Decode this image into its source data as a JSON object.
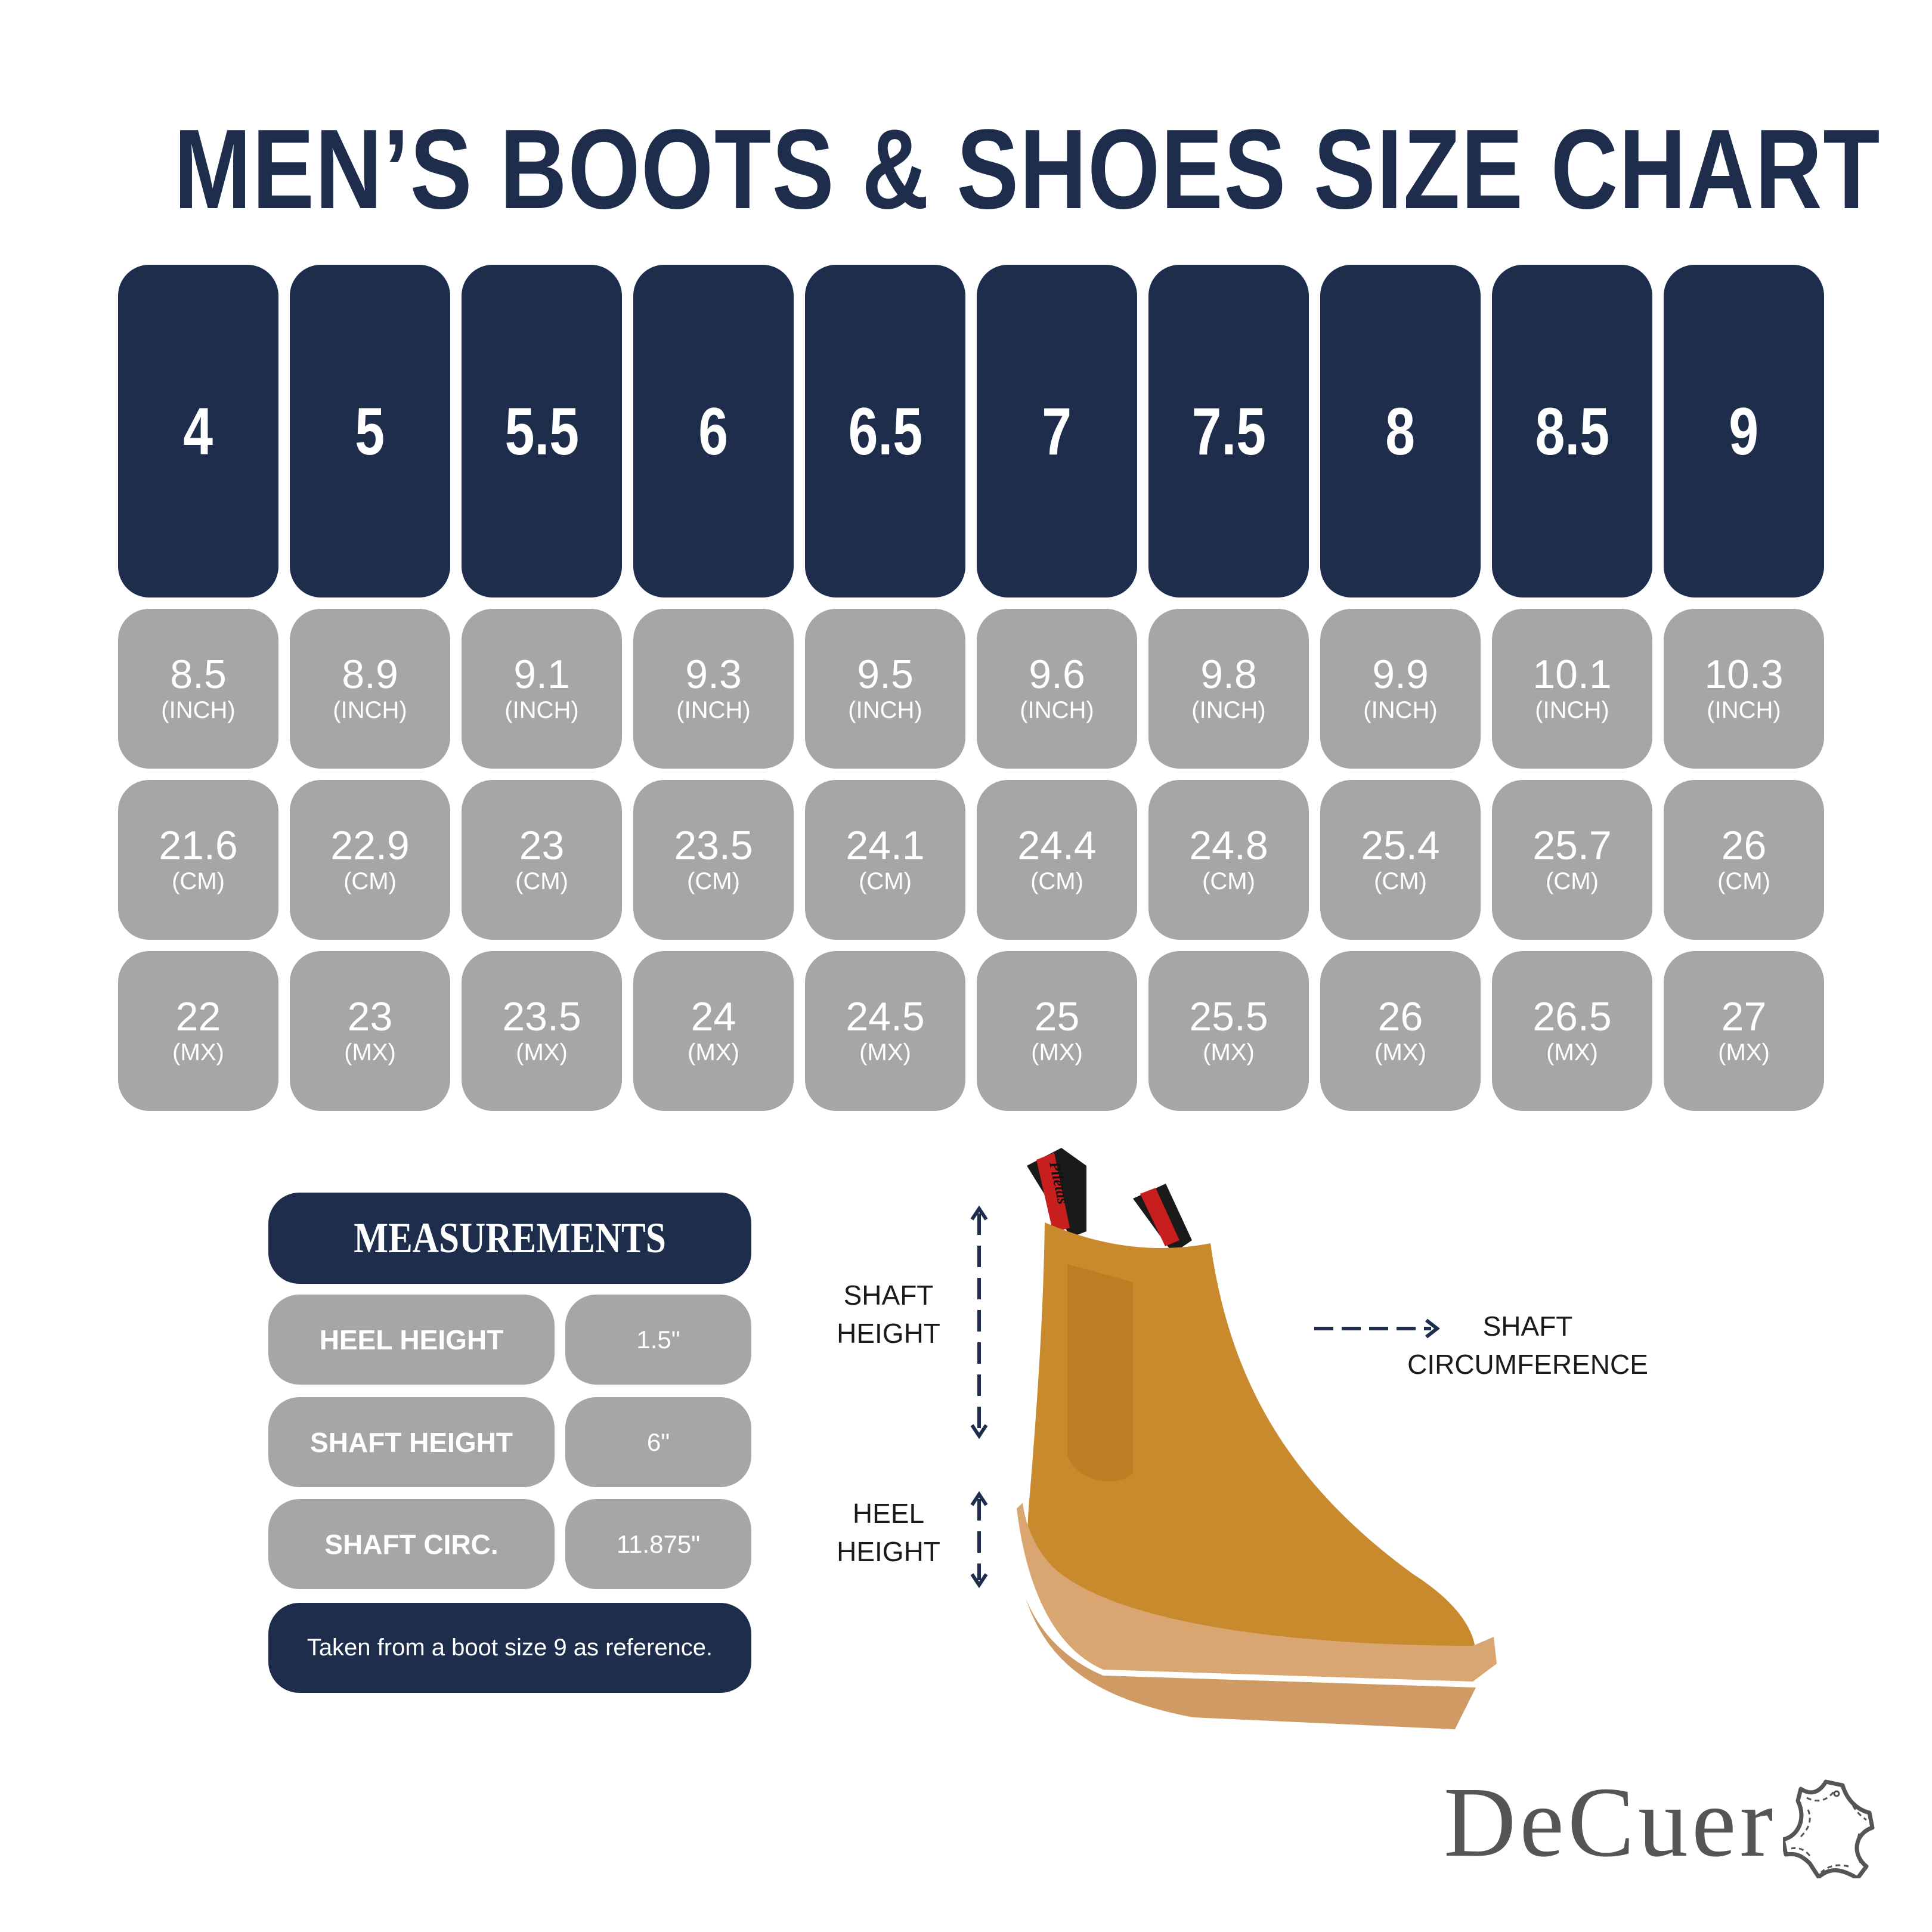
{
  "title": "MEN’S BOOTS & SHOES SIZE CHART",
  "colors": {
    "navy": "#1d2d4b",
    "gray": "#a6a6a6",
    "boot": "#c98a2e",
    "sole": "#d9a672"
  },
  "sizes": [
    {
      "us": "4",
      "inch": "8.5",
      "cm": "21.6",
      "mx": "22"
    },
    {
      "us": "5",
      "inch": "8.9",
      "cm": "22.9",
      "mx": "23"
    },
    {
      "us": "5.5",
      "inch": "9.1",
      "cm": "23",
      "mx": "23.5"
    },
    {
      "us": "6",
      "inch": "9.3",
      "cm": "23.5",
      "mx": "24"
    },
    {
      "us": "6.5",
      "inch": "9.5",
      "cm": "24.1",
      "mx": "24.5"
    },
    {
      "us": "7",
      "inch": "9.6",
      "cm": "24.4",
      "mx": "25"
    },
    {
      "us": "7.5",
      "inch": "9.8",
      "cm": "24.8",
      "mx": "25.5"
    },
    {
      "us": "8",
      "inch": "9.9",
      "cm": "25.4",
      "mx": "26"
    },
    {
      "us": "8.5",
      "inch": "10.1",
      "cm": "25.7",
      "mx": "26.5"
    },
    {
      "us": "9",
      "inch": "10.3",
      "cm": "26",
      "mx": "27"
    }
  ],
  "units": {
    "inch": "(INCH)",
    "cm": "(CM)",
    "mx": "(MX)"
  },
  "measurements": {
    "title": "MEASUREMENTS",
    "rows": [
      {
        "label": "HEEL HEIGHT",
        "value": "1.5\""
      },
      {
        "label": "SHAFT HEIGHT",
        "value": "6\""
      },
      {
        "label": "SHAFT CIRC.",
        "value": "11.875\""
      }
    ],
    "note": "Taken from a boot size 9 as reference."
  },
  "diagram": {
    "shaft_height": [
      "SHAFT",
      "HEIGHT"
    ],
    "heel_height": [
      "HEEL",
      "HEIGHT"
    ],
    "shaft_circumference": [
      "SHAFT",
      "CIRCUMFERENCE"
    ],
    "pull_tab_text": "Piletas"
  },
  "logo": "DeCuer"
}
